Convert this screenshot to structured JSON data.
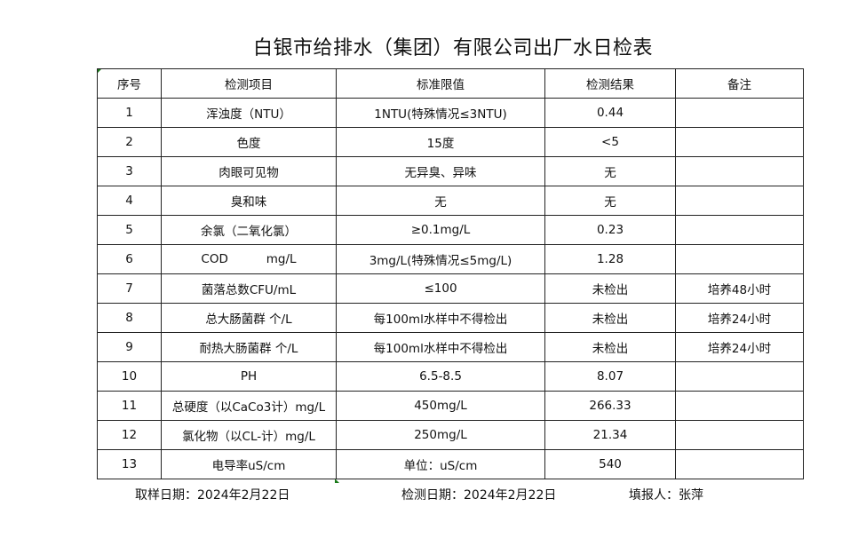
{
  "title": "白银市给排水（集团）有限公司出厂水日检表",
  "headers": [
    "序号",
    "检测项目",
    "标准限值",
    "检测结果",
    "备注"
  ],
  "rows": [
    [
      "1",
      "浑浊度（NTU）",
      "1NTU(特殊情况≤3NTU)",
      "0.44",
      ""
    ],
    [
      "2",
      "色度",
      "15度",
      "<5",
      ""
    ],
    [
      "3",
      "肉眼可见物",
      "无异臭、异味",
      "无",
      ""
    ],
    [
      "4",
      "臭和味",
      "无",
      "无",
      ""
    ],
    [
      "5",
      "余氯（二氧化氯）",
      "≥0.1mg/L",
      "0.23",
      ""
    ],
    [
      "6",
      "COD          mg/L",
      "3mg/L(特殊情况≤5mg/L)",
      "1.28",
      ""
    ],
    [
      "7",
      "菌落总数CFU/mL",
      "≤100",
      "未检出",
      "培养48小时"
    ],
    [
      "8",
      "总大肠菌群 个/L",
      "每100ml水样中不得检出",
      "未检出",
      "培养24小时"
    ],
    [
      "9",
      "耐热大肠菌群 个/L",
      "每100ml水样中不得检出",
      "未检出",
      "培养24小时"
    ],
    [
      "10",
      "PH",
      "6.5-8.5",
      "8.07",
      ""
    ],
    [
      "11",
      "总硬度（以CaCo3计）mg/L",
      "450mg/L",
      "266.33",
      ""
    ],
    [
      "12",
      "氯化物（以CL-计）mg/L",
      "250mg/L",
      "21.34",
      ""
    ],
    [
      "13",
      "电导率uS/cm",
      "单位：uS/cm",
      "540",
      ""
    ]
  ],
  "footer": {
    "sampling_date": "取样日期：2024年2月22日",
    "test_date": "检测日期：2024年2月22日",
    "reporter": "填报人：张萍"
  }
}
